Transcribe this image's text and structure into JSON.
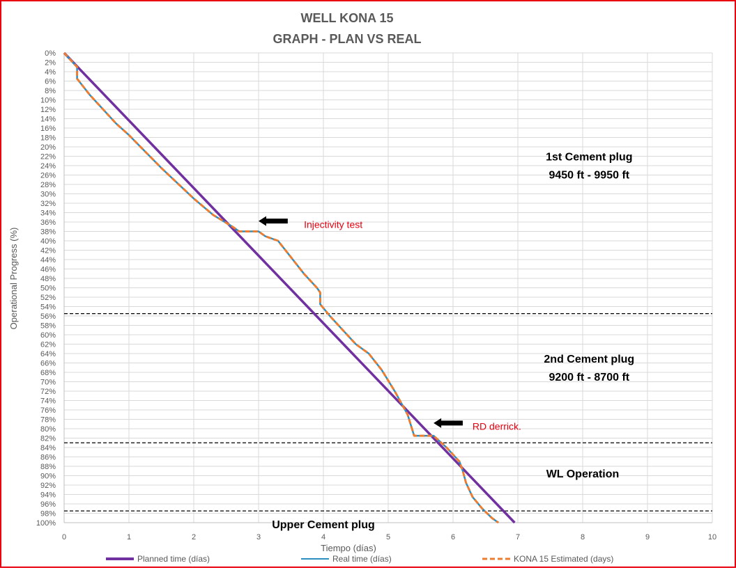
{
  "chart_data": {
    "type": "line",
    "title_line1": "WELL KONA 15",
    "title_line2": "GRAPH  - PLAN VS REAL",
    "xlabel": "Tiempo (días)",
    "ylabel": "Operational Progress (%)",
    "xlim": [
      0,
      10
    ],
    "ylim": [
      0,
      100
    ],
    "y_inverted": true,
    "x_ticks": [
      "0",
      "1",
      "2",
      "3",
      "4",
      "5",
      "6",
      "7",
      "8",
      "9",
      "10"
    ],
    "y_ticks": [
      "0%",
      "2%",
      "4%",
      "6%",
      "8%",
      "10%",
      "12%",
      "14%",
      "16%",
      "18%",
      "20%",
      "22%",
      "24%",
      "26%",
      "28%",
      "30%",
      "32%",
      "34%",
      "36%",
      "38%",
      "40%",
      "42%",
      "44%",
      "46%",
      "48%",
      "50%",
      "52%",
      "54%",
      "56%",
      "58%",
      "60%",
      "62%",
      "64%",
      "66%",
      "68%",
      "70%",
      "72%",
      "74%",
      "76%",
      "78%",
      "80%",
      "82%",
      "84%",
      "86%",
      "88%",
      "90%",
      "92%",
      "94%",
      "96%",
      "98%",
      "100%"
    ],
    "grid": true,
    "legend_position": "bottom",
    "series": [
      {
        "name": "Planned time (días)",
        "color": "#7030a0",
        "style": "solid",
        "x": [
          0,
          6.95
        ],
        "y": [
          0,
          100
        ]
      },
      {
        "name": "Real time (días)",
        "color": "#2e8fbf",
        "style": "solid",
        "x": [
          0,
          0.2,
          0.2,
          0.4,
          0.6,
          0.8,
          1.0,
          1.5,
          2.0,
          2.3,
          2.6,
          2.7,
          3.0,
          3.1,
          3.3,
          3.5,
          3.7,
          3.9,
          3.95,
          3.95,
          4.1,
          4.3,
          4.5,
          4.7,
          4.9,
          5.1,
          5.3,
          5.4,
          5.7,
          5.9,
          6.1,
          6.15,
          6.2,
          6.3,
          6.45,
          6.6,
          6.7
        ],
        "y": [
          0,
          3,
          5.5,
          9,
          12,
          15,
          17.5,
          24.5,
          31,
          34.5,
          37,
          38,
          38,
          39,
          40,
          43.5,
          47,
          50,
          51,
          53.5,
          56,
          59,
          62,
          64,
          67.5,
          72,
          77,
          81.5,
          81.5,
          84,
          87,
          89,
          91.5,
          94.5,
          97,
          99,
          100
        ]
      },
      {
        "name": "KONA 15 Estimated (days)",
        "color": "#ed7d31",
        "style": "dashed",
        "x": [
          0,
          0.2,
          0.2,
          0.4,
          0.6,
          0.8,
          1.0,
          1.5,
          2.0,
          2.3,
          2.6,
          2.7,
          3.0,
          3.1,
          3.3,
          3.5,
          3.7,
          3.9,
          3.95,
          3.95,
          4.1,
          4.3,
          4.5,
          4.7,
          4.9,
          5.1,
          5.3,
          5.4,
          5.7,
          5.9,
          6.1,
          6.15,
          6.2,
          6.3,
          6.45,
          6.6,
          6.7
        ],
        "y": [
          0,
          3,
          5.5,
          9,
          12,
          15,
          17.5,
          24.5,
          31,
          34.5,
          37,
          38,
          38,
          39,
          40,
          43.5,
          47,
          50,
          51,
          53.5,
          56,
          59,
          62,
          64,
          67.5,
          72,
          77,
          81.5,
          81.5,
          84,
          87,
          89,
          91.5,
          94.5,
          97,
          99,
          100
        ]
      }
    ],
    "zone_lines_y": [
      55.5,
      83,
      97.5
    ],
    "zones": [
      {
        "line1": "1st Cement plug",
        "line2": "9450 ft - 9950 ft",
        "x": 8.1,
        "y": 22
      },
      {
        "line1": "2nd Cement plug",
        "line2": "9200 ft - 8700 ft",
        "x": 8.1,
        "y": 65
      },
      {
        "line1": "WL Operation",
        "line2": "",
        "x": 8.0,
        "y": 89.5
      },
      {
        "line1": "Upper Cement plug",
        "line2": "",
        "x": 4.0,
        "y": 100.3
      }
    ],
    "annotations": [
      {
        "text": "Injectivity test",
        "x": 3.7,
        "y": 36.5,
        "arrow_from_x": 3.45,
        "arrow_to_x": 3.0,
        "arrow_y": 35.8
      },
      {
        "text": "RD derrick.",
        "x": 6.3,
        "y": 79.5,
        "arrow_from_x": 6.15,
        "arrow_to_x": 5.7,
        "arrow_y": 78.8
      }
    ]
  }
}
